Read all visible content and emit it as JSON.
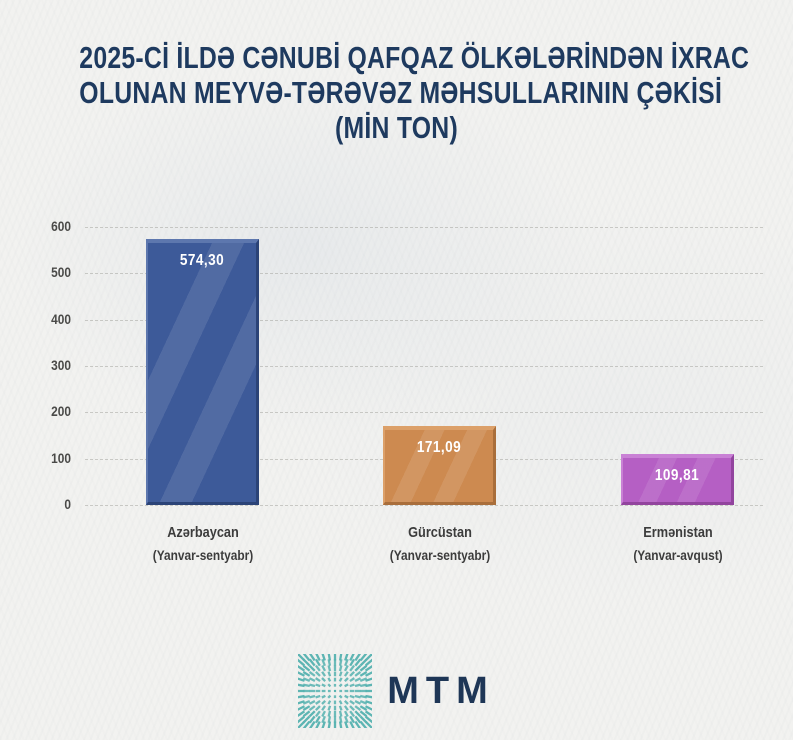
{
  "page": {
    "background": "#f2f2f0"
  },
  "title": {
    "line1": "2025-Cİ İLDƏ CƏNUBİ QAFQAZ ÖLKƏLƏRİNDƏN İXRAC",
    "line2": "OLUNAN MEYVƏ-TƏRƏVƏZ MƏHSULLARININ ÇƏKİSİ",
    "line3": "(MİN TON)",
    "color": "#1e3a5f"
  },
  "chart_data": {
    "type": "bar",
    "title": "2025-ci ildə Cənubi Qafqaz ölkələrindən ixrac olunan meyvə-tərəvəz məhsullarının çəkisi (min ton)",
    "categories": [
      "Azərbaycan",
      "Gürcüstan",
      "Ermənistan"
    ],
    "period_labels": [
      "(Yanvar-sentyabr)",
      "(Yanvar-sentyabr)",
      "(Yanvar-avqust)"
    ],
    "values": [
      574.3,
      171.09,
      109.81
    ],
    "value_labels": [
      "574,30",
      "171,09",
      "109,81"
    ],
    "xlabel": "",
    "ylabel": "",
    "ylim": [
      0,
      600
    ],
    "yticks": [
      0,
      100,
      200,
      300,
      400,
      500,
      600
    ],
    "grid": "horizontal-dashed",
    "legend": "none",
    "bar_styles": [
      {
        "main": "#3d5a99",
        "light": "#5d77ae",
        "dark": "#2b4377"
      },
      {
        "main": "#cd8a50",
        "light": "#dca069",
        "dark": "#a96e3b"
      },
      {
        "main": "#b55fc4",
        "light": "#c981d5",
        "dark": "#92449e"
      }
    ],
    "value_label_color": "#ffffff",
    "tick_color": "#4a4a48",
    "category_color": "#3c3c3c"
  },
  "footer": {
    "logo_text": "MTM",
    "logo_text_color": "#1e3656",
    "logo_icon": "sunburst-dash-grid-icon",
    "logo_icon_color": "#56b2b0"
  }
}
